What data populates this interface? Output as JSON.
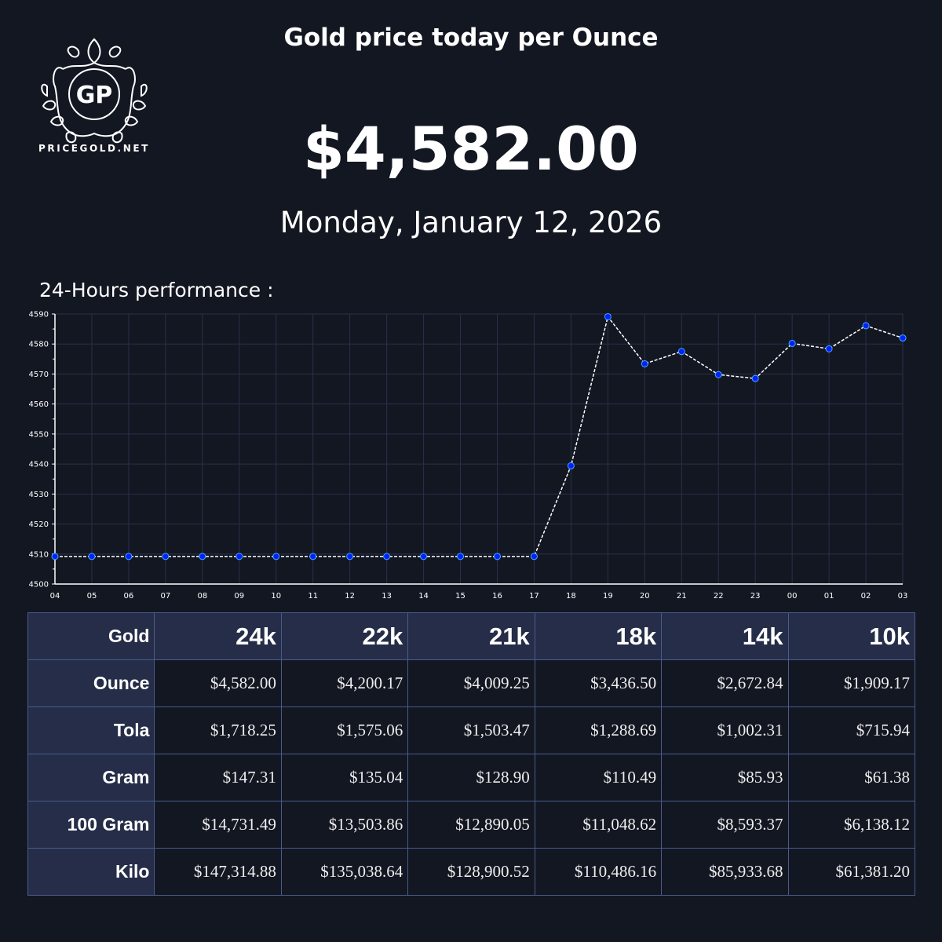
{
  "header": {
    "logo_monogram": "GP",
    "logo_text": "PRICEGOLD.NET",
    "title": "Gold price today per Ounce",
    "price": "$4,582.00",
    "date": "Monday, January 12, 2026"
  },
  "section_label": "24-Hours performance :",
  "colors": {
    "background": "#131722",
    "grid": "#2a3048",
    "line": "#ffffff",
    "marker": "#0022ff",
    "header_cell": "#252d48",
    "cell_border": "#4a5b8c"
  },
  "chart_data": {
    "type": "line",
    "title": "24-Hours performance :",
    "xlabel": "",
    "ylabel": "",
    "categories": [
      "04",
      "05",
      "06",
      "07",
      "08",
      "09",
      "10",
      "11",
      "12",
      "13",
      "14",
      "15",
      "16",
      "17",
      "18",
      "19",
      "20",
      "21",
      "22",
      "23",
      "00",
      "01",
      "02",
      "03"
    ],
    "values": [
      4509.2,
      4509.2,
      4509.2,
      4509.2,
      4509.2,
      4509.2,
      4509.2,
      4509.2,
      4509.2,
      4509.2,
      4509.2,
      4509.2,
      4509.2,
      4509.2,
      4539.4,
      4589.1,
      4573.4,
      4577.5,
      4569.8,
      4568.5,
      4580.2,
      4578.4,
      4586.1,
      4582.0
    ],
    "yticks": [
      4500,
      4510,
      4520,
      4530,
      4540,
      4550,
      4560,
      4570,
      4580,
      4590
    ],
    "ylim": [
      4500,
      4590
    ],
    "grid": true,
    "line_style": "dashed",
    "legend": null
  },
  "table": {
    "corner": "Gold",
    "columns": [
      "24k",
      "22k",
      "21k",
      "18k",
      "14k",
      "10k"
    ],
    "rows": [
      {
        "label": "Ounce",
        "values": [
          "$4,582.00",
          "$4,200.17",
          "$4,009.25",
          "$3,436.50",
          "$2,672.84",
          "$1,909.17"
        ]
      },
      {
        "label": "Tola",
        "values": [
          "$1,718.25",
          "$1,575.06",
          "$1,503.47",
          "$1,288.69",
          "$1,002.31",
          "$715.94"
        ]
      },
      {
        "label": "Gram",
        "values": [
          "$147.31",
          "$135.04",
          "$128.90",
          "$110.49",
          "$85.93",
          "$61.38"
        ]
      },
      {
        "label": "100 Gram",
        "values": [
          "$14,731.49",
          "$13,503.86",
          "$12,890.05",
          "$11,048.62",
          "$8,593.37",
          "$6,138.12"
        ]
      },
      {
        "label": "Kilo",
        "values": [
          "$147,314.88",
          "$135,038.64",
          "$128,900.52",
          "$110,486.16",
          "$85,933.68",
          "$61,381.20"
        ]
      }
    ]
  }
}
